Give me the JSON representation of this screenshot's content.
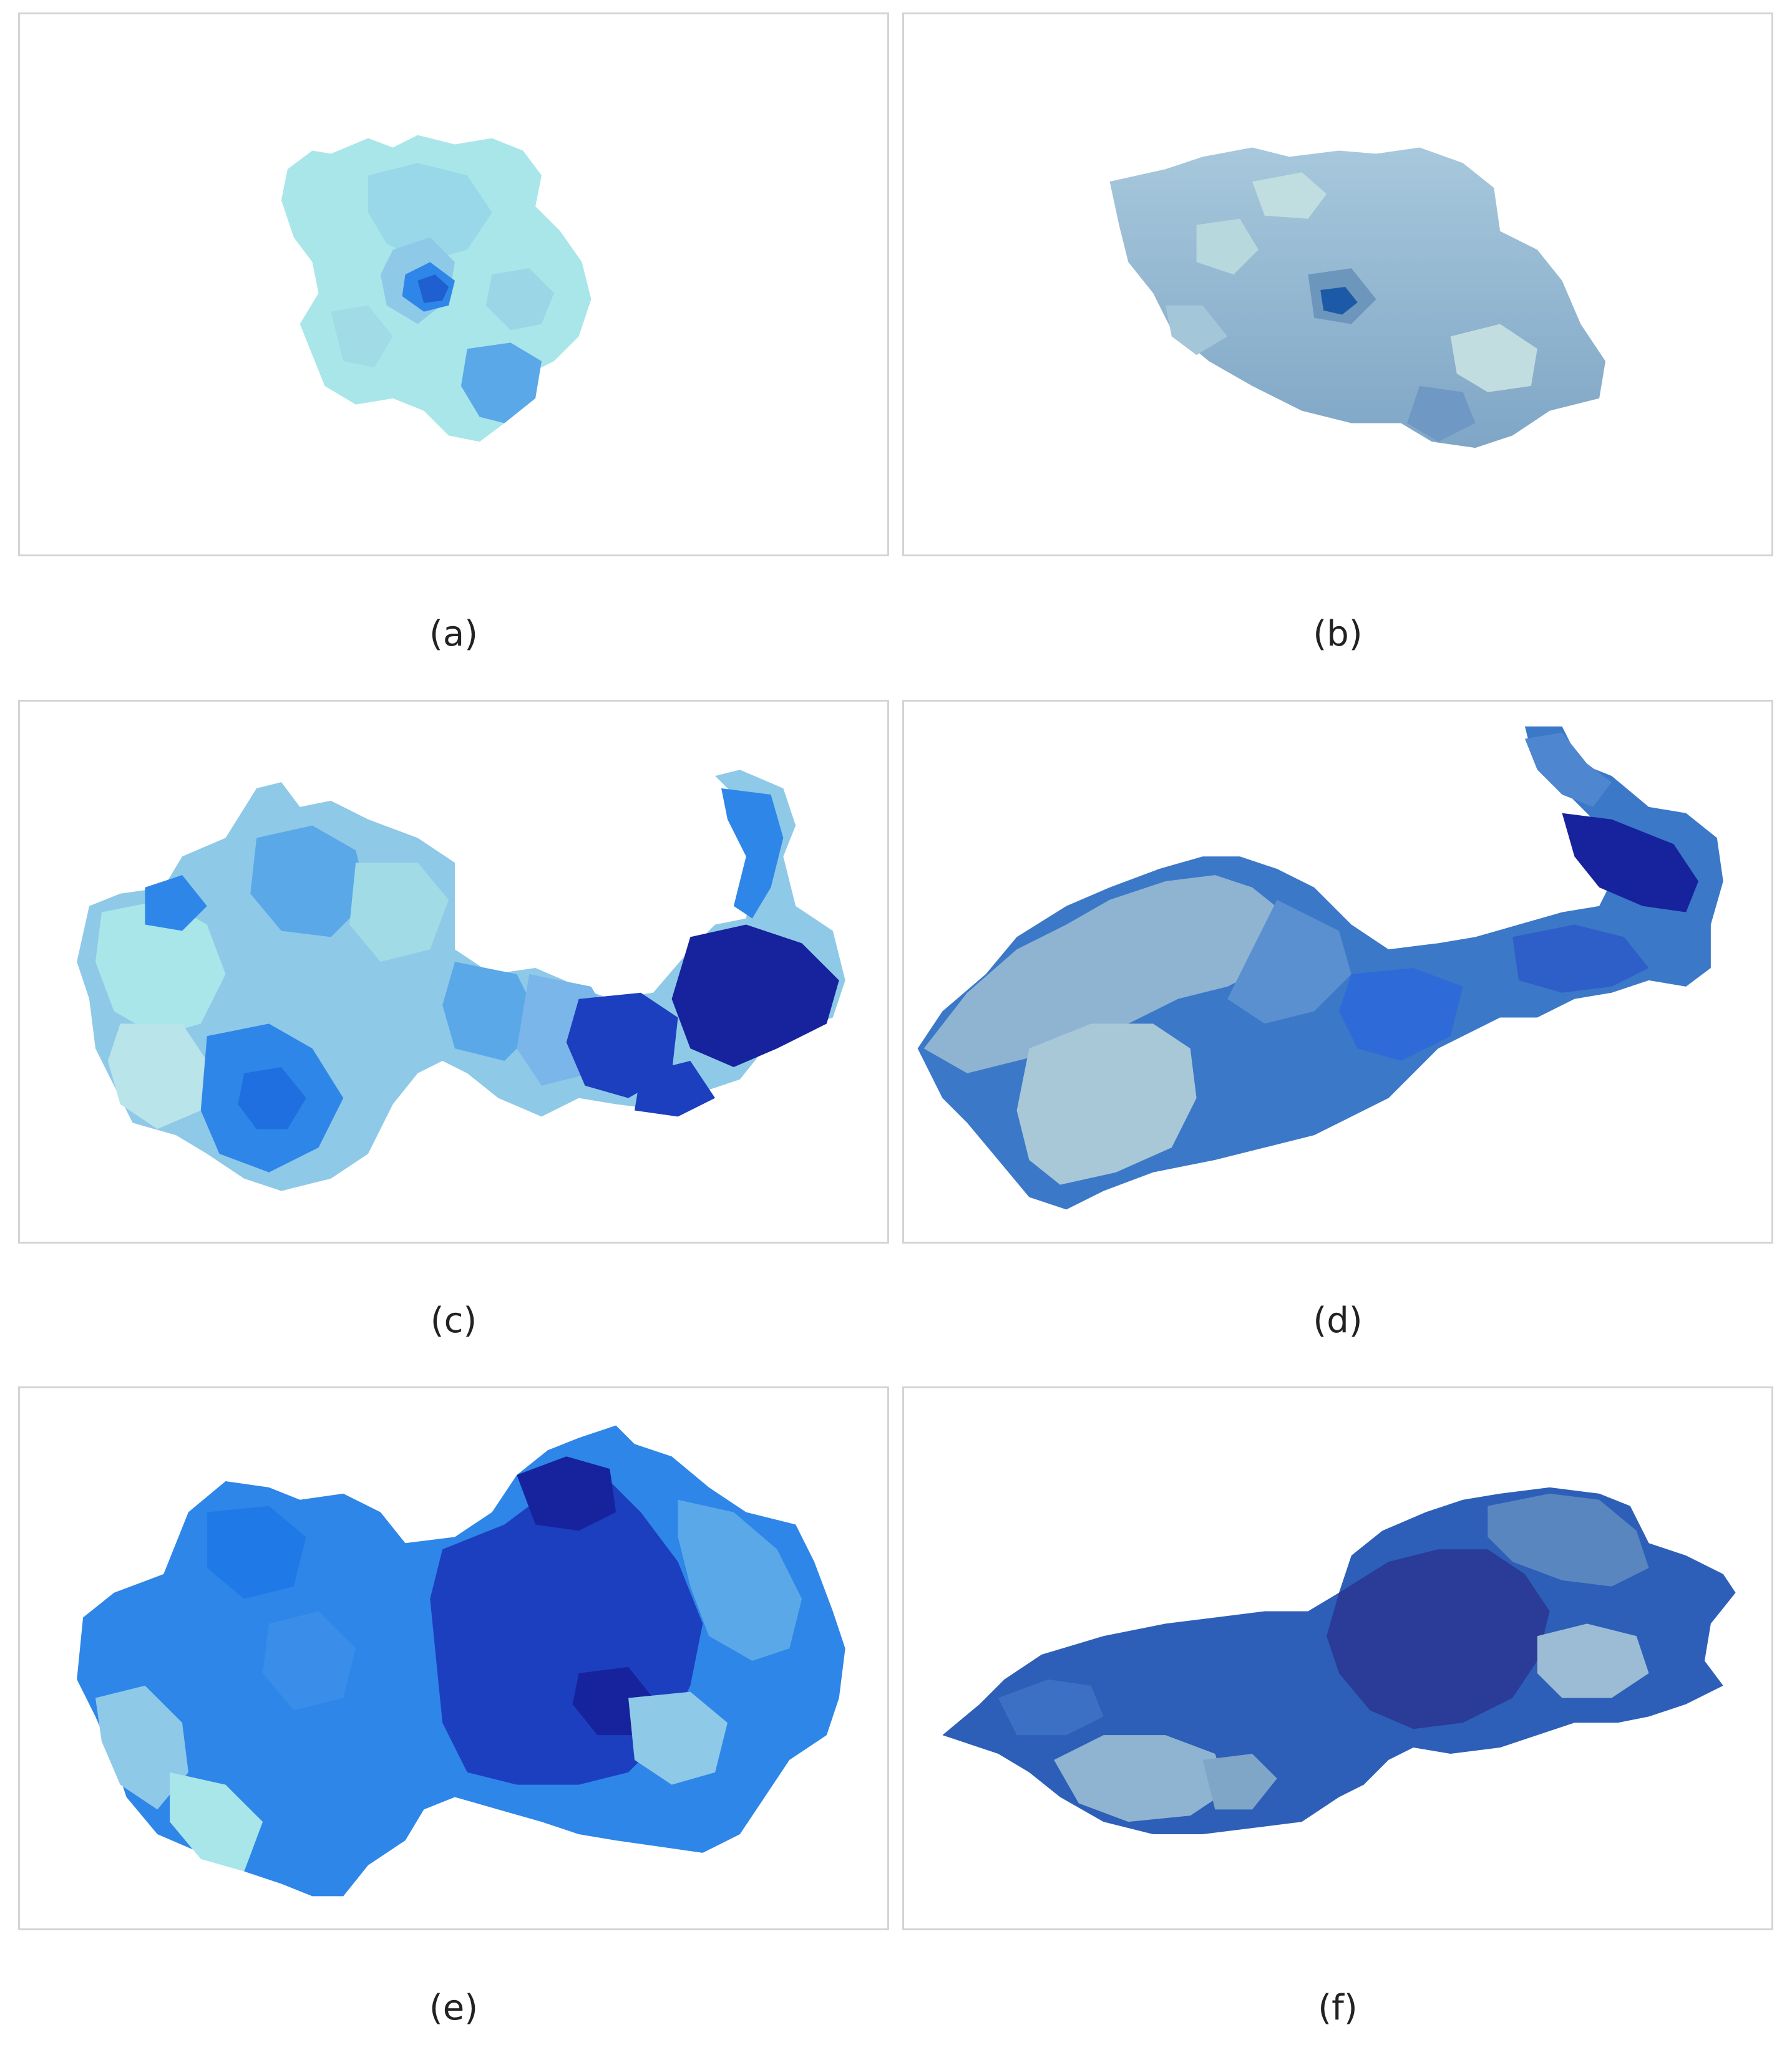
{
  "panels": [
    {
      "id": "a",
      "caption": "(a)",
      "view": "2D"
    },
    {
      "id": "b",
      "caption": "(b)",
      "view": "3D"
    },
    {
      "id": "c",
      "caption": "(c)",
      "view": "2D"
    },
    {
      "id": "d",
      "caption": "(d)",
      "view": "3D"
    },
    {
      "id": "e",
      "caption": "(e)",
      "view": "2D"
    },
    {
      "id": "f",
      "caption": "(f)",
      "view": "3D"
    }
  ],
  "colors": {
    "lightest": "#a8e6ea",
    "light": "#8fc9e8",
    "mid": "#5aa8e8",
    "bright": "#2e86e8",
    "strong": "#1f6fe0",
    "deep": "#1c3fc0",
    "darkest": "#16239c",
    "grey_blue": "#8fb4d2",
    "frame": "#d4d4d4"
  }
}
